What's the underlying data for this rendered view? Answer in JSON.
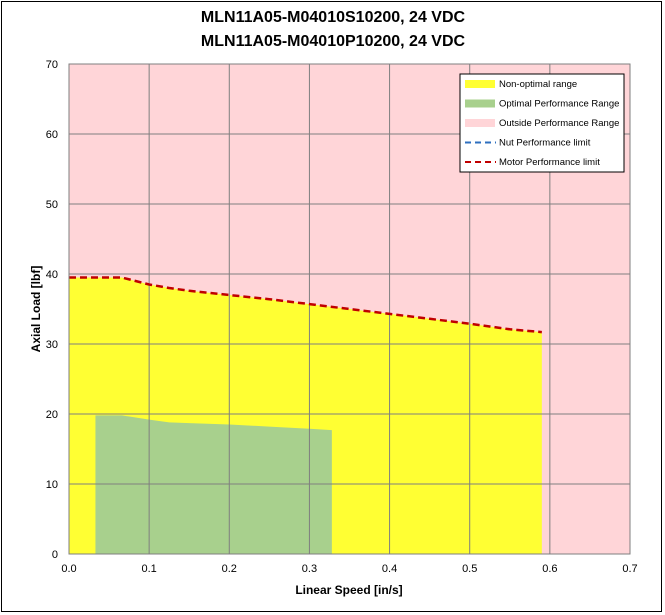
{
  "chart_data": {
    "type": "area",
    "title_lines": [
      "MLN11A05-M04010S10200, 24 VDC",
      "MLN11A05-M04010P10200, 24 VDC"
    ],
    "xlabel": "Linear Speed [in/s]",
    "ylabel": "Axial Load [lbf]",
    "xlim": [
      0,
      0.7
    ],
    "ylim": [
      0,
      70
    ],
    "x_ticks": [
      "0.0",
      "0.1",
      "0.2",
      "0.3",
      "0.4",
      "0.5",
      "0.6",
      "0.7"
    ],
    "y_ticks": [
      "0",
      "10",
      "20",
      "30",
      "40",
      "50",
      "60",
      "70"
    ],
    "grid": true,
    "legend_position": "top-right",
    "colors": {
      "outside": "#ffd5d8",
      "non_optimal": "#ffff33",
      "optimal": "#a8d08d",
      "nut_limit": "#2e6fbf",
      "motor_limit": "#c00000",
      "grid": "#7f7f7f"
    },
    "series": [
      {
        "name": "Non-optimal range",
        "kind": "area",
        "x": [
          0,
          0.066,
          0.1,
          0.125,
          0.15,
          0.2,
          0.25,
          0.3,
          0.35,
          0.4,
          0.45,
          0.5,
          0.55,
          0.59
        ],
        "y": [
          39.5,
          39.5,
          38.5,
          38.0,
          37.6,
          37.0,
          36.4,
          35.7,
          35.0,
          34.3,
          33.6,
          32.9,
          32.1,
          31.7
        ]
      },
      {
        "name": "Optimal Performance Range",
        "kind": "area",
        "x": [
          0.033,
          0.066,
          0.1,
          0.125,
          0.15,
          0.2,
          0.25,
          0.3,
          0.328
        ],
        "y": [
          19.8,
          19.8,
          19.2,
          18.8,
          18.7,
          18.5,
          18.2,
          17.9,
          17.7
        ]
      },
      {
        "name": "Outside Performance Range",
        "kind": "background"
      },
      {
        "name": "Nut Performance limit",
        "kind": "dashed-line",
        "x": [],
        "y": []
      },
      {
        "name": "Motor Performance limit",
        "kind": "dashed-line",
        "x": [
          0,
          0.066,
          0.1,
          0.125,
          0.15,
          0.2,
          0.25,
          0.3,
          0.35,
          0.4,
          0.45,
          0.5,
          0.55,
          0.59
        ],
        "y": [
          39.5,
          39.5,
          38.5,
          38.0,
          37.6,
          37.0,
          36.4,
          35.7,
          35.0,
          34.3,
          33.6,
          32.9,
          32.1,
          31.7
        ]
      }
    ]
  }
}
